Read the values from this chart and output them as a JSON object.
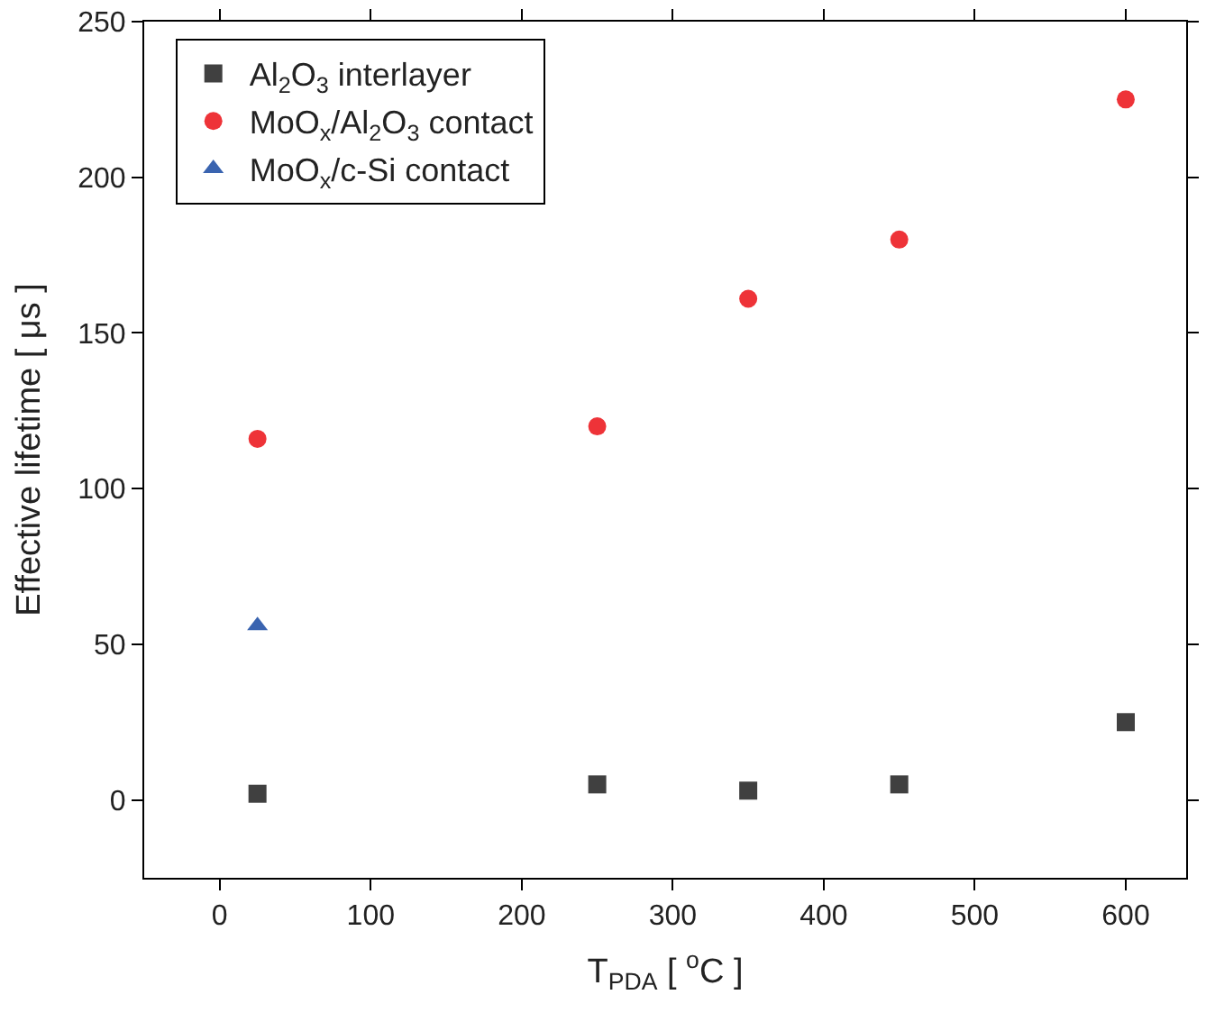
{
  "chart_data": {
    "type": "scatter",
    "xlabel": "T$_{PDA}$ [ $^{o}$C ]",
    "ylabel": "Effective lifetime [ μs ]",
    "xlim": [
      -50,
      640
    ],
    "xticks": [
      0,
      100,
      200,
      300,
      400,
      500,
      600
    ],
    "ylim": [
      -25,
      250
    ],
    "yticks": [
      0,
      50,
      100,
      150,
      200,
      250
    ],
    "legend": "top left",
    "series": [
      {
        "name": "Al$_{2}$O$_{3}$ interlayer",
        "color": "#404040",
        "marker": "square",
        "x": [
          25,
          250,
          350,
          450,
          600
        ],
        "values": [
          2,
          5,
          3,
          5,
          25
        ]
      },
      {
        "name": "MoO$_{x}$/Al$_{2}$O$_{3}$ contact",
        "color": "#ee3338",
        "marker": "circle",
        "x": [
          25,
          250,
          350,
          450,
          600
        ],
        "values": [
          116,
          120,
          161,
          180,
          225
        ]
      },
      {
        "name": "MoO$_{x}$/c-Si contact",
        "color": "#3a64b0",
        "marker": "triangle",
        "x": [
          25
        ],
        "values": [
          56
        ]
      }
    ]
  }
}
